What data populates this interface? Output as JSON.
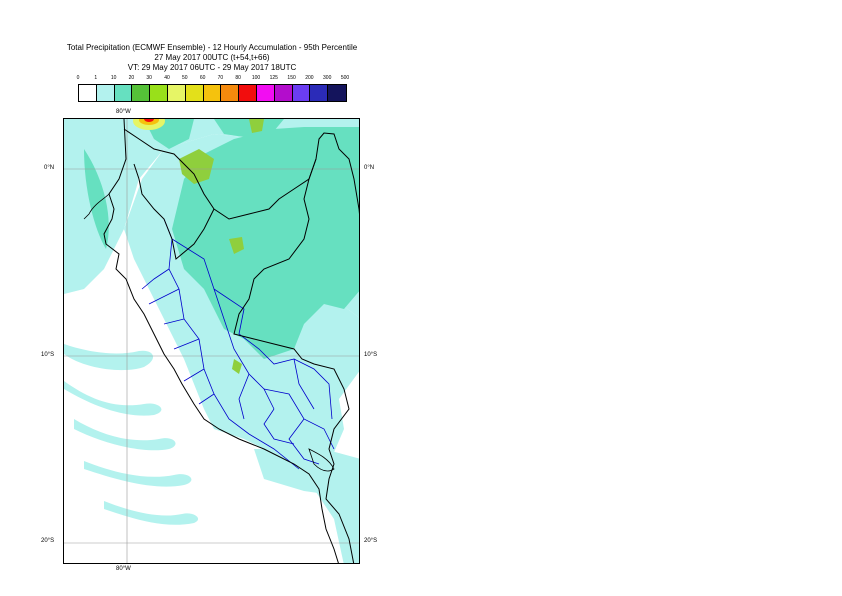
{
  "title": {
    "line1": "Total Precipitation (ECMWF Ensemble) - 12 Hourly Accumulation - 95th Percentile",
    "line2": "27 May 2017 00UTC (t+54,t+66)",
    "line3": "VT: 29 May 2017 06UTC - 29 May 2017 18UTC"
  },
  "legend": {
    "labels": [
      "0",
      "1",
      "10",
      "20",
      "30",
      "40",
      "50",
      "60",
      "70",
      "80",
      "100",
      "125",
      "150",
      "200",
      "300",
      "500"
    ],
    "colors": [
      "#ffffff",
      "#b3f2ee",
      "#66e0c0",
      "#55c238",
      "#99e01a",
      "#e6f566",
      "#e3e01a",
      "#f5c20d",
      "#f58a0d",
      "#f20d0d",
      "#f20df2",
      "#b30dcc",
      "#6b3df2",
      "#2b2bb8",
      "#14145c"
    ]
  },
  "map": {
    "lat_labels": [
      "0°N",
      "10°S",
      "20°S"
    ],
    "lon_label": "80°W",
    "colors": {
      "light": "#b3f2ee",
      "mid": "#66e0c0",
      "green": "#8fcf3d",
      "yellow": "#e6f566",
      "red": "#f20d0d",
      "coast": "#000000",
      "regions": "#0000cc",
      "grid": "#999999"
    }
  }
}
